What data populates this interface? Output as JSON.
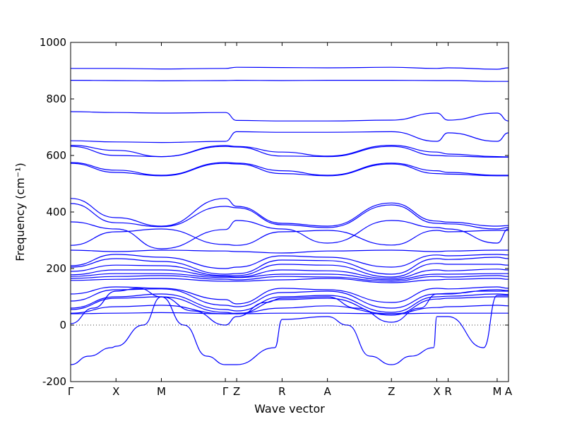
{
  "chart_data": {
    "type": "line",
    "xlabel": "Wave vector",
    "ylabel": "Frequency (cm⁻¹)",
    "ylim": [
      -200,
      1000
    ],
    "yticks": [
      -200,
      0,
      200,
      400,
      600,
      800,
      1000
    ],
    "xlim": [
      0,
      9.65
    ],
    "kpoints": [
      {
        "label": "Γ",
        "x": 0
      },
      {
        "label": "X",
        "x": 1
      },
      {
        "label": "M",
        "x": 2
      },
      {
        "label": "Γ",
        "x": 3.41
      },
      {
        "label": "Z",
        "x": 3.66
      },
      {
        "label": "R",
        "x": 4.66
      },
      {
        "label": "A",
        "x": 5.66
      },
      {
        "label": "Z",
        "x": 7.07
      },
      {
        "label": "X",
        "x": 8.07
      },
      {
        "label": "R",
        "x": 8.32
      },
      {
        "label": "M",
        "x": 9.4
      },
      {
        "label": "A",
        "x": 9.65
      }
    ],
    "zero_line": true,
    "grid": false,
    "color": "#0000ff",
    "series": [
      {
        "x": [
          0,
          1,
          2,
          3.41,
          3.66,
          4.66,
          5.66,
          7.07,
          8.07,
          8.32,
          9.4,
          9.65
        ],
        "y": [
          908,
          908,
          906,
          908,
          912,
          911,
          910,
          912,
          908,
          910,
          905,
          910
        ]
      },
      {
        "x": [
          0,
          1,
          2,
          3.41,
          3.66,
          4.66,
          5.66,
          7.07,
          8.07,
          8.32,
          9.4,
          9.65
        ],
        "y": [
          866,
          865,
          864,
          865,
          866,
          865,
          866,
          866,
          865,
          865,
          862,
          862
        ]
      },
      {
        "x": [
          0,
          1,
          2,
          3.41,
          3.66,
          4.66,
          5.66,
          7.07,
          8.07,
          8.32,
          9.4,
          9.65
        ],
        "y": [
          755,
          752,
          750,
          752,
          724,
          722,
          722,
          725,
          750,
          725,
          750,
          722
        ]
      },
      {
        "x": [
          0,
          1,
          2,
          3.41,
          3.66,
          4.66,
          5.66,
          7.07,
          8.07,
          8.32,
          9.4,
          9.65
        ],
        "y": [
          652,
          648,
          646,
          650,
          684,
          682,
          682,
          684,
          650,
          680,
          650,
          680
        ]
      },
      {
        "x": [
          0,
          1,
          2,
          3.41,
          3.66,
          4.66,
          5.66,
          7.07,
          8.07,
          8.32,
          9.4,
          9.65
        ],
        "y": [
          636,
          618,
          596,
          635,
          632,
          612,
          598,
          636,
          612,
          605,
          596,
          595
        ]
      },
      {
        "x": [
          0,
          1,
          2,
          3.41,
          3.66,
          4.66,
          5.66,
          7.07,
          8.07,
          8.32,
          9.4,
          9.65
        ],
        "y": [
          632,
          600,
          596,
          632,
          630,
          598,
          596,
          632,
          600,
          598,
          594,
          594
        ]
      },
      {
        "x": [
          0,
          1,
          2,
          3.41,
          3.66,
          4.66,
          5.66,
          7.07,
          8.07,
          8.32,
          9.4,
          9.65
        ],
        "y": [
          575,
          548,
          530,
          575,
          573,
          546,
          530,
          573,
          546,
          540,
          530,
          530
        ]
      },
      {
        "x": [
          0,
          1,
          2,
          3.41,
          3.66,
          4.66,
          5.66,
          7.07,
          8.07,
          8.32,
          9.4,
          9.65
        ],
        "y": [
          572,
          540,
          528,
          572,
          570,
          536,
          528,
          570,
          536,
          534,
          528,
          528
        ]
      },
      {
        "x": [
          0,
          1,
          2,
          3.41,
          3.66,
          4.66,
          5.66,
          7.07,
          8.07,
          8.32,
          9.4,
          9.65
        ],
        "y": [
          448,
          380,
          350,
          448,
          420,
          360,
          350,
          432,
          368,
          364,
          350,
          352
        ]
      },
      {
        "x": [
          0,
          1,
          2,
          3.41,
          3.66,
          4.66,
          5.66,
          7.07,
          8.07,
          8.32,
          9.4,
          9.65
        ],
        "y": [
          430,
          362,
          348,
          420,
          415,
          355,
          345,
          425,
          360,
          358,
          340,
          345
        ]
      },
      {
        "x": [
          0,
          1,
          2,
          3.41,
          3.66,
          4.66,
          5.66,
          7.07,
          8.07,
          8.32,
          9.4,
          9.65
        ],
        "y": [
          365,
          340,
          270,
          338,
          370,
          340,
          290,
          370,
          345,
          340,
          290,
          340
        ]
      },
      {
        "x": [
          0,
          1,
          2,
          3.41,
          3.66,
          4.66,
          5.66,
          7.07,
          8.07,
          8.32,
          9.4,
          9.65
        ],
        "y": [
          282,
          330,
          340,
          285,
          282,
          330,
          335,
          283,
          335,
          330,
          335,
          335
        ]
      },
      {
        "x": [
          0,
          1,
          2,
          3.41,
          3.66,
          4.66,
          5.66,
          7.07,
          8.07,
          8.32,
          9.4,
          9.65
        ],
        "y": [
          265,
          260,
          265,
          262,
          260,
          255,
          262,
          265,
          260,
          262,
          265,
          265
        ]
      },
      {
        "x": [
          0,
          1,
          2,
          3.41,
          3.66,
          4.66,
          5.66,
          7.07,
          8.07,
          8.32,
          9.4,
          9.65
        ],
        "y": [
          210,
          250,
          240,
          200,
          205,
          245,
          240,
          205,
          248,
          245,
          250,
          248
        ]
      },
      {
        "x": [
          0,
          1,
          2,
          3.41,
          3.66,
          4.66,
          5.66,
          7.07,
          8.07,
          8.32,
          9.4,
          9.65
        ],
        "y": [
          205,
          235,
          225,
          180,
          182,
          230,
          228,
          180,
          235,
          232,
          240,
          235
        ]
      },
      {
        "x": [
          0,
          1,
          2,
          3.41,
          3.66,
          4.66,
          5.66,
          7.07,
          8.07,
          8.32,
          9.4,
          9.65
        ],
        "y": [
          190,
          212,
          210,
          175,
          175,
          215,
          212,
          170,
          218,
          215,
          215,
          212
        ]
      },
      {
        "x": [
          0,
          1,
          2,
          3.41,
          3.66,
          4.66,
          5.66,
          7.07,
          8.07,
          8.32,
          9.4,
          9.65
        ],
        "y": [
          178,
          195,
          195,
          172,
          170,
          195,
          192,
          165,
          195,
          192,
          198,
          195
        ]
      },
      {
        "x": [
          0,
          1,
          2,
          3.41,
          3.66,
          4.66,
          5.66,
          7.07,
          8.07,
          8.32,
          9.4,
          9.65
        ],
        "y": [
          172,
          182,
          182,
          168,
          168,
          180,
          180,
          160,
          180,
          180,
          182,
          182
        ]
      },
      {
        "x": [
          0,
          1,
          2,
          3.41,
          3.66,
          4.66,
          5.66,
          7.07,
          8.07,
          8.32,
          9.4,
          9.65
        ],
        "y": [
          165,
          172,
          175,
          162,
          160,
          172,
          170,
          155,
          172,
          170,
          175,
          172
        ]
      },
      {
        "x": [
          0,
          1,
          2,
          3.41,
          3.66,
          4.66,
          5.66,
          7.07,
          8.07,
          8.32,
          9.4,
          9.65
        ],
        "y": [
          158,
          162,
          165,
          155,
          155,
          160,
          165,
          150,
          160,
          162,
          165,
          162
        ]
      },
      {
        "x": [
          0,
          1,
          2,
          3.41,
          3.66,
          4.66,
          5.66,
          7.07,
          8.07,
          8.32,
          9.4,
          9.65
        ],
        "y": [
          110,
          135,
          130,
          90,
          75,
          130,
          125,
          80,
          130,
          128,
          135,
          130
        ]
      },
      {
        "x": [
          0,
          1,
          2,
          3.41,
          3.66,
          4.66,
          5.66,
          7.07,
          8.07,
          8.32,
          9.4,
          9.65
        ],
        "y": [
          85,
          125,
          128,
          70,
          65,
          115,
          120,
          60,
          110,
          112,
          125,
          122
        ]
      },
      {
        "x": [
          0,
          1,
          2,
          3.41,
          3.66,
          4.66,
          5.66,
          7.07,
          8.07,
          8.32,
          9.4,
          9.65
        ],
        "y": [
          60,
          100,
          110,
          55,
          50,
          100,
          105,
          45,
          100,
          102,
          110,
          108
        ]
      },
      {
        "x": [
          0,
          1,
          2,
          3.41,
          3.66,
          4.66,
          5.66,
          7.07,
          8.07,
          8.32,
          9.4,
          9.65
        ],
        "y": [
          55,
          95,
          100,
          45,
          40,
          90,
          95,
          35,
          92,
          95,
          100,
          100
        ]
      },
      {
        "x": [
          0,
          1,
          2,
          3.41,
          3.66,
          4.66,
          5.66,
          7.07,
          8.07,
          8.32,
          9.4,
          9.65
        ],
        "y": [
          42,
          65,
          70,
          40,
          42,
          60,
          68,
          40,
          62,
          65,
          70,
          68
        ]
      },
      {
        "x": [
          0,
          1,
          2,
          3.41,
          3.66,
          4.66,
          5.66,
          7.07,
          8.07,
          8.32,
          9.4,
          9.65
        ],
        "y": [
          40,
          42,
          44,
          40,
          40,
          42,
          42,
          40,
          42,
          42,
          42,
          42
        ]
      },
      {
        "x": [
          0,
          0.5,
          1,
          1.5,
          2,
          2.7,
          3.41,
          3.66,
          4.3,
          4.66,
          5.66,
          6.3,
          7.07,
          7.7,
          8.07,
          8.32,
          9.0,
          9.4,
          9.65
        ],
        "y": [
          5,
          60,
          120,
          130,
          100,
          50,
          0,
          30,
          80,
          95,
          100,
          60,
          10,
          60,
          110,
          110,
          120,
          120,
          120
        ]
      },
      {
        "x": [
          0,
          0.4,
          0.9,
          1,
          1.6,
          2,
          2.5,
          3.0,
          3.41,
          3.66,
          4.5,
          4.66,
          5.66,
          6.1,
          6.6,
          7.07,
          7.5,
          8.0,
          8.07,
          8.32,
          9.1,
          9.4,
          9.65
        ],
        "y": [
          -140,
          -110,
          -80,
          -75,
          0,
          100,
          0,
          -110,
          -140,
          -140,
          -80,
          20,
          30,
          0,
          -110,
          -140,
          -110,
          -80,
          30,
          30,
          -80,
          105,
          105
        ]
      }
    ]
  }
}
